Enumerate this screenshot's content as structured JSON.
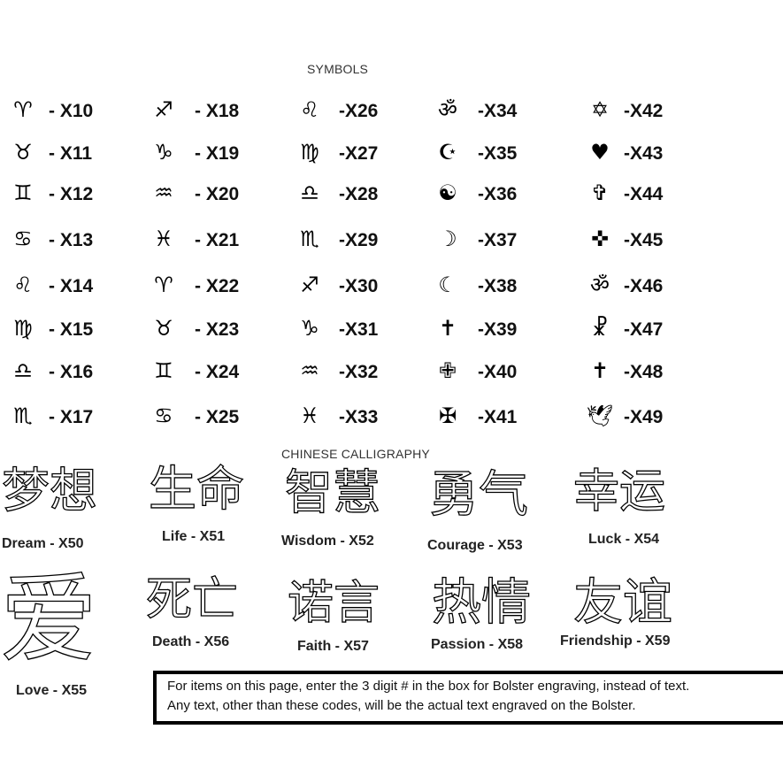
{
  "headings": {
    "symbols": "SYMBOLS",
    "chinese": "CHINESE CALLIGRAPHY"
  },
  "symbols": [
    {
      "glyph": "♈",
      "icon": "aries-icon",
      "code": "- X10"
    },
    {
      "glyph": "♉",
      "icon": "taurus-icon",
      "code": "- X11"
    },
    {
      "glyph": "♊",
      "icon": "gemini-icon",
      "code": "- X12"
    },
    {
      "glyph": "♋",
      "icon": "cancer-icon",
      "code": "- X13"
    },
    {
      "glyph": "♌",
      "icon": "leo-icon",
      "code": "- X14"
    },
    {
      "glyph": "♍",
      "icon": "virgo-icon",
      "code": "- X15"
    },
    {
      "glyph": "♎",
      "icon": "libra-icon",
      "code": "- X16"
    },
    {
      "glyph": "♏",
      "icon": "scorpio-icon",
      "code": "- X17"
    },
    {
      "glyph": "♐",
      "icon": "sagittarius-icon",
      "code": "- X18"
    },
    {
      "glyph": "♑",
      "icon": "capricorn-icon",
      "code": "- X19"
    },
    {
      "glyph": "♒",
      "icon": "aquarius-icon",
      "code": "- X20"
    },
    {
      "glyph": "♓",
      "icon": "pisces-icon",
      "code": "- X21"
    },
    {
      "glyph": "♈",
      "icon": "ram-figure-icon",
      "code": "- X22"
    },
    {
      "glyph": "♉",
      "icon": "bull-figure-icon",
      "code": "- X23"
    },
    {
      "glyph": "♊",
      "icon": "twins-figure-icon",
      "code": "- X24"
    },
    {
      "glyph": "♋",
      "icon": "crab-figure-icon",
      "code": "- X25"
    },
    {
      "glyph": "♌",
      "icon": "lion-figure-icon",
      "code": "-X26"
    },
    {
      "glyph": "♍",
      "icon": "maiden-figure-icon",
      "code": "-X27"
    },
    {
      "glyph": "♎",
      "icon": "scales-figure-icon",
      "code": "-X28"
    },
    {
      "glyph": "♏",
      "icon": "scorpion-figure-icon",
      "code": "-X29"
    },
    {
      "glyph": "♐",
      "icon": "archer-figure-icon",
      "code": "-X30"
    },
    {
      "glyph": "♑",
      "icon": "goat-figure-icon",
      "code": "-X31"
    },
    {
      "glyph": "♒",
      "icon": "water-bearer-figure-icon",
      "code": "-X32"
    },
    {
      "glyph": "♓",
      "icon": "fish-figure-icon",
      "code": "-X33"
    },
    {
      "glyph": "ॐ",
      "icon": "om-icon",
      "code": "-X34"
    },
    {
      "glyph": "☪",
      "icon": "star-crescent-icon",
      "code": "-X35"
    },
    {
      "glyph": "☯",
      "icon": "yin-yang-icon",
      "code": "-X36"
    },
    {
      "glyph": "☽",
      "icon": "crescent-moon-right-icon",
      "code": "-X37"
    },
    {
      "glyph": "☾",
      "icon": "crescent-moon-left-icon",
      "code": "-X38"
    },
    {
      "glyph": "✝",
      "icon": "latin-cross-icon",
      "code": "-X39"
    },
    {
      "glyph": "✙",
      "icon": "outlined-cross-icon",
      "code": "-X40"
    },
    {
      "glyph": "✠",
      "icon": "maltese-cross-icon",
      "code": "-X41"
    },
    {
      "glyph": "✡",
      "icon": "star-of-david-icon",
      "code": "-X42"
    },
    {
      "glyph": "♥",
      "icon": "heart-icon",
      "code": "-X43"
    },
    {
      "glyph": "✞",
      "icon": "outline-cross-icon",
      "code": "-X44"
    },
    {
      "glyph": "✜",
      "icon": "celtic-cross-icon",
      "code": "-X45"
    },
    {
      "glyph": "ॐ",
      "icon": "om-icon",
      "code": "-X46"
    },
    {
      "glyph": "☧",
      "icon": "chi-rho-icon",
      "code": "-X47"
    },
    {
      "glyph": "✝",
      "icon": "cross-icon",
      "code": "-X48"
    },
    {
      "glyph": "🕊",
      "icon": "dove-icon",
      "code": "-X49"
    }
  ],
  "calligraphy": [
    {
      "chars": "梦想",
      "label": "Dream - X50"
    },
    {
      "chars": "生命",
      "label": "Life - X51"
    },
    {
      "chars": "智慧",
      "label": "Wisdom - X52"
    },
    {
      "chars": "勇气",
      "label": "Courage - X53"
    },
    {
      "chars": "幸运",
      "label": "Luck - X54"
    },
    {
      "chars": "爱",
      "label": "Love - X55"
    },
    {
      "chars": "死亡",
      "label": "Death - X56"
    },
    {
      "chars": "诺言",
      "label": "Faith - X57"
    },
    {
      "chars": "热情",
      "label": "Passion - X58"
    },
    {
      "chars": "友谊",
      "label": "Friendship - X59"
    }
  ],
  "note": {
    "line1": "For items on this page, enter the 3 digit # in the box for Bolster engraving, instead of text.",
    "line2": "Any text, other than these codes, will be the actual text engraved on the Bolster."
  }
}
